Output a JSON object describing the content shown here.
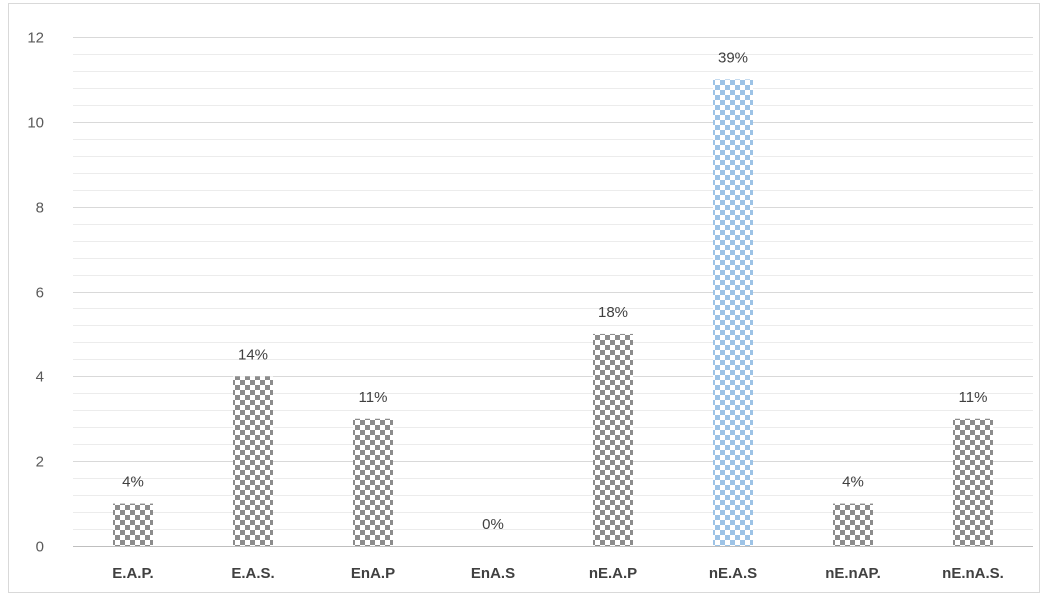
{
  "chart_data": {
    "type": "bar",
    "categories": [
      "E.A.P.",
      "E.A.S.",
      "EnA.P",
      "EnA.S",
      "nE.A.P",
      "nE.A.S",
      "nE.nAP.",
      "nE.nA.S."
    ],
    "values": [
      1,
      4,
      3,
      0,
      5,
      11,
      1,
      3
    ],
    "data_labels": [
      "4%",
      "14%",
      "11%",
      "0%",
      "18%",
      "39%",
      "4%",
      "11%"
    ],
    "title": "",
    "xlabel": "",
    "ylabel": "",
    "ylim": [
      0,
      12
    ],
    "yticks": [
      0,
      2,
      4,
      6,
      8,
      10,
      12
    ],
    "minor_grid_step": 0.4,
    "grid": true,
    "legend": "none",
    "pattern": "checkerboard",
    "colors": {
      "bar": "#8c8c8c",
      "bar_highlight": "#9dc3e6",
      "grid_major": "#d9d9d9",
      "grid_minor": "#ececec",
      "axis": "#bfbfbf"
    },
    "highlight_index": 5
  }
}
